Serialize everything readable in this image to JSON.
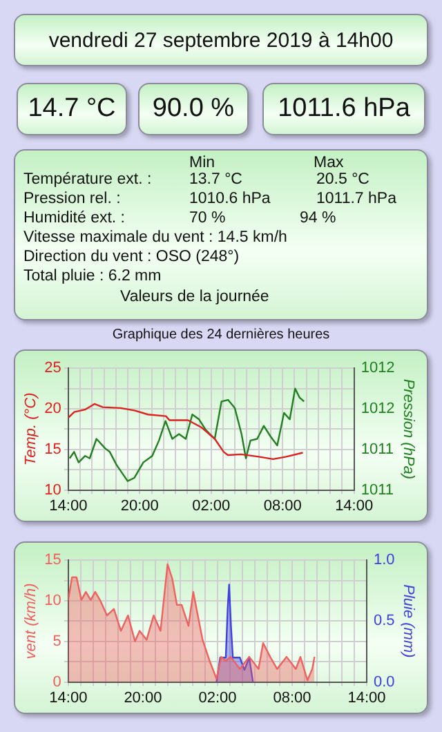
{
  "chart_data": [
    {
      "type": "other",
      "title": "vendredi 27 septembre 2019 à 14h00",
      "annotations": [
        "14.7 °C",
        "90.0 %",
        "1011.6 hPa",
        "Min",
        "Max",
        "Température ext. :",
        "13.7 °C",
        "20.5 °C",
        "Pression rel. :",
        "1010.6 hPa",
        "1011.7 hPa",
        "Humidité ext. :",
        "70 %",
        "94 %",
        "Vitesse maximale du vent : 14.5 km/h",
        "Direction du vent : OSO (248°)",
        "Total pluie : 6.2 mm",
        "Valeurs de la journée"
      ]
    },
    {
      "type": "line",
      "title": "Graphique des 24 dernières heures",
      "ylabel": "Temp. (°C)",
      "y2label": "Pression (hPa)",
      "grid": true,
      "xlim": [
        "2019-09-26T14:00",
        "2019-09-27T14:00"
      ],
      "xticks": [
        {
          "value": "2019-09-26T14:00",
          "label": "14:00"
        },
        {
          "value": "2019-09-26T15:00",
          "label": null
        },
        {
          "value": "2019-09-26T16:00",
          "label": null
        },
        {
          "value": "2019-09-26T17:00",
          "label": null
        },
        {
          "value": "2019-09-26T18:00",
          "label": null
        },
        {
          "value": "2019-09-26T19:00",
          "label": null
        },
        {
          "value": "2019-09-26T20:00",
          "label": "20:00"
        },
        {
          "value": "2019-09-26T21:00",
          "label": null
        },
        {
          "value": "2019-09-26T22:00",
          "label": null
        },
        {
          "value": "2019-09-26T23:00",
          "label": null
        },
        {
          "value": "2019-09-27T00:00",
          "label": null
        },
        {
          "value": "2019-09-27T01:00",
          "label": null
        },
        {
          "value": "2019-09-27T02:00",
          "label": "02:00"
        },
        {
          "value": "2019-09-27T03:00",
          "label": null
        },
        {
          "value": "2019-09-27T04:00",
          "label": null
        },
        {
          "value": "2019-09-27T05:00",
          "label": null
        },
        {
          "value": "2019-09-27T06:00",
          "label": null
        },
        {
          "value": "2019-09-27T07:00",
          "label": null
        },
        {
          "value": "2019-09-27T08:00",
          "label": "08:00"
        },
        {
          "value": "2019-09-27T09:00",
          "label": null
        },
        {
          "value": "2019-09-27T10:00",
          "label": null
        },
        {
          "value": "2019-09-27T11:00",
          "label": null
        },
        {
          "value": "2019-09-27T12:00",
          "label": null
        },
        {
          "value": "2019-09-27T13:00",
          "label": null
        },
        {
          "value": "2019-09-27T14:00",
          "label": "14:00"
        }
      ],
      "ylim": [
        10,
        25
      ],
      "yticks": [
        10,
        {
          "value": 12.5,
          "label": null
        },
        15,
        {
          "value": 17.5,
          "label": null
        },
        20,
        {
          "value": 22.5,
          "label": null
        },
        25
      ],
      "y2lim": [
        1010.5,
        1012
      ],
      "y2ticks": [
        {
          "value": 1010.5,
          "label": "1011"
        },
        {
          "value": 1011,
          "label": "1011"
        },
        {
          "value": 1011.5,
          "label": "1012"
        },
        {
          "value": 1012,
          "label": "1012"
        }
      ],
      "series": [
        {
          "color": "#e02020",
          "x": [
            "2019-09-26T14:00",
            "2019-09-26T14:30",
            "2019-09-26T15:24",
            "2019-09-26T16:12",
            "2019-09-26T16:54",
            "2019-09-26T18:24",
            "2019-09-26T19:33",
            "2019-09-26T20:42",
            "2019-09-26T22:12",
            "2019-09-26T22:30",
            "2019-09-27T00:03",
            "2019-09-27T01:12",
            "2019-09-27T02:18",
            "2019-09-27T03:03",
            "2019-09-27T03:24",
            "2019-09-27T04:30",
            "2019-09-27T06:00",
            "2019-09-27T07:12",
            "2019-09-27T08:18",
            "2019-09-27T09:42"
          ],
          "values": [
            18.9,
            19.6,
            19.9,
            20.6,
            20.2,
            20.1,
            19.8,
            19.3,
            19.1,
            18.6,
            18.6,
            17.7,
            16.3,
            14.7,
            14.3,
            14.4,
            14.1,
            13.8,
            14.1,
            14.6
          ]
        },
        {
          "color": "#208020",
          "axis": "y2",
          "x": [
            "2019-09-26T14:07",
            "2019-09-26T14:29",
            "2019-09-26T14:52",
            "2019-09-26T15:25",
            "2019-09-26T15:48",
            "2019-09-26T16:22",
            "2019-09-26T17:07",
            "2019-09-26T17:29",
            "2019-09-26T18:03",
            "2019-09-26T18:59",
            "2019-09-26T19:33",
            "2019-09-26T20:18",
            "2019-09-26T21:03",
            "2019-09-26T21:37",
            "2019-09-26T22:10",
            "2019-09-26T22:44",
            "2019-09-26T23:18",
            "2019-09-26T23:52",
            "2019-09-27T00:25",
            "2019-09-27T00:59",
            "2019-09-27T01:33",
            "2019-09-27T02:18",
            "2019-09-27T02:52",
            "2019-09-27T03:25",
            "2019-09-27T03:59",
            "2019-09-27T04:33",
            "2019-09-27T04:55",
            "2019-09-27T05:18",
            "2019-09-27T05:52",
            "2019-09-27T06:25",
            "2019-09-27T06:59",
            "2019-09-27T07:33",
            "2019-09-27T08:07",
            "2019-09-27T08:36",
            "2019-09-27T09:03",
            "2019-09-27T09:25",
            "2019-09-27T09:48"
          ],
          "values": [
            1010.89,
            1010.97,
            1010.84,
            1010.92,
            1010.89,
            1011.13,
            1011.01,
            1010.97,
            1010.81,
            1010.61,
            1010.65,
            1010.84,
            1010.92,
            1011.11,
            1011.35,
            1011.13,
            1011.19,
            1011.13,
            1011.43,
            1011.37,
            1011.24,
            1011.13,
            1011.59,
            1011.61,
            1011.51,
            1011.19,
            1010.89,
            1011.11,
            1011.13,
            1011.29,
            1011.16,
            1011.05,
            1011.45,
            1011.37,
            1011.75,
            1011.64,
            1011.59
          ]
        }
      ]
    },
    {
      "type": "area",
      "ylabel": "vent (km/h)",
      "y2label": "Pluie (mm)",
      "grid": true,
      "xlim": [
        "2019-09-26T14:00",
        "2019-09-27T14:00"
      ],
      "xticks": [
        {
          "value": "2019-09-26T14:00",
          "label": "14:00"
        },
        {
          "value": "2019-09-26T15:00",
          "label": null
        },
        {
          "value": "2019-09-26T16:00",
          "label": null
        },
        {
          "value": "2019-09-26T17:00",
          "label": null
        },
        {
          "value": "2019-09-26T18:00",
          "label": null
        },
        {
          "value": "2019-09-26T19:00",
          "label": null
        },
        {
          "value": "2019-09-26T20:00",
          "label": "20:00"
        },
        {
          "value": "2019-09-26T21:00",
          "label": null
        },
        {
          "value": "2019-09-26T22:00",
          "label": null
        },
        {
          "value": "2019-09-26T23:00",
          "label": null
        },
        {
          "value": "2019-09-27T00:00",
          "label": null
        },
        {
          "value": "2019-09-27T01:00",
          "label": null
        },
        {
          "value": "2019-09-27T02:00",
          "label": "02:00"
        },
        {
          "value": "2019-09-27T03:00",
          "label": null
        },
        {
          "value": "2019-09-27T04:00",
          "label": null
        },
        {
          "value": "2019-09-27T05:00",
          "label": null
        },
        {
          "value": "2019-09-27T06:00",
          "label": null
        },
        {
          "value": "2019-09-27T07:00",
          "label": null
        },
        {
          "value": "2019-09-27T08:00",
          "label": "08:00"
        },
        {
          "value": "2019-09-27T09:00",
          "label": null
        },
        {
          "value": "2019-09-27T10:00",
          "label": null
        },
        {
          "value": "2019-09-27T11:00",
          "label": null
        },
        {
          "value": "2019-09-27T12:00",
          "label": null
        },
        {
          "value": "2019-09-27T13:00",
          "label": null
        },
        {
          "value": "2019-09-27T14:00",
          "label": "14:00"
        }
      ],
      "ylim": [
        0,
        15
      ],
      "yticks": [
        0,
        {
          "value": 2.5,
          "label": null
        },
        5,
        {
          "value": 7.5,
          "label": null
        },
        10,
        {
          "value": 12.5,
          "label": null
        },
        15
      ],
      "y2lim": [
        0,
        1
      ],
      "y2ticks": [
        {
          "value": 0,
          "label": "0.0"
        },
        {
          "value": 0.5,
          "label": "0.5"
        },
        {
          "value": 1,
          "label": "1.0"
        }
      ],
      "series": [
        {
          "color": "#f06060",
          "x": [
            "2019-09-26T14:00",
            "2019-09-26T14:18",
            "2019-09-26T14:40",
            "2019-09-26T15:03",
            "2019-09-26T15:25",
            "2019-09-26T15:48",
            "2019-09-26T16:10",
            "2019-09-26T16:33",
            "2019-09-26T17:07",
            "2019-09-26T17:40",
            "2019-09-26T18:14",
            "2019-09-26T18:48",
            "2019-09-26T19:22",
            "2019-09-26T19:44",
            "2019-09-26T20:18",
            "2019-09-26T20:52",
            "2019-09-26T21:25",
            "2019-09-26T21:59",
            "2019-09-26T22:22",
            "2019-09-26T22:44",
            "2019-09-26T23:07",
            "2019-09-26T23:40",
            "2019-09-27T00:03",
            "2019-09-27T00:25",
            "2019-09-27T00:48",
            "2019-09-27T01:22",
            "2019-09-27T01:55",
            "2019-09-27T02:18",
            "2019-09-27T02:40",
            "2019-09-27T03:03",
            "2019-09-27T03:48",
            "2019-09-27T04:33",
            "2019-09-27T05:18",
            "2019-09-27T05:40",
            "2019-09-27T06:14",
            "2019-09-27T06:48",
            "2019-09-27T07:33",
            "2019-09-27T08:18",
            "2019-09-27T08:40",
            "2019-09-27T09:14",
            "2019-09-27T09:37",
            "2019-09-27T09:48"
          ],
          "values": [
            10.1,
            12.9,
            12.9,
            10.1,
            11.1,
            10.1,
            11.1,
            10.1,
            8.2,
            9,
            6.3,
            8.2,
            5,
            6.3,
            5.2,
            8.2,
            6.3,
            14.5,
            12.7,
            9.5,
            9.5,
            6.9,
            11.1,
            8.2,
            5.2,
            2.6,
            0.4,
            3.1,
            2.6,
            3.1,
            1.6,
            3.1,
            1.6,
            4.8,
            3.1,
            1.6,
            3.1,
            1.6,
            3.1,
            0.2,
            1.6,
            3.1
          ]
        },
        {
          "color": "#4040e0",
          "axis": "y2",
          "x": [
            "2019-09-27T01:55",
            "2019-09-27T02:13",
            "2019-09-27T02:40",
            "2019-09-27T02:49",
            "2019-09-27T02:56",
            "2019-09-27T03:05",
            "2019-09-27T03:14",
            "2019-09-27T03:48",
            "2019-09-27T04:10",
            "2019-09-27T04:33",
            "2019-09-27T04:51"
          ],
          "values": [
            0,
            0.2,
            0.2,
            0.6,
            0.8,
            0.46,
            0.2,
            0.2,
            0.1,
            0.2,
            0
          ]
        }
      ]
    }
  ]
}
